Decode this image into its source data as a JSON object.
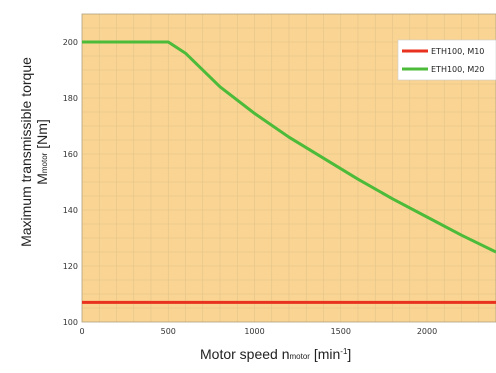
{
  "chart_data": {
    "type": "line",
    "title": "",
    "xlabel": {
      "main": "Motor speed  n",
      "sub": "motor",
      "unit_pre": " [min",
      "unit_sup": "-1",
      "unit_post": "]"
    },
    "ylabel": {
      "line1": "Maximum transmissible torque",
      "line2_main": "M",
      "line2_sub": "motor",
      "line2_unit": " [Nm]"
    },
    "xlim": [
      0,
      2400
    ],
    "ylim": [
      100,
      210
    ],
    "xticks": [
      0,
      500,
      1000,
      1500,
      2000
    ],
    "xtick_labels": [
      "0",
      "500",
      "1000",
      "1500",
      "2000"
    ],
    "yticks": [
      100,
      120,
      140,
      160,
      180,
      200
    ],
    "ytick_labels": [
      "100",
      "120",
      "140",
      "160",
      "180",
      "200"
    ],
    "grid": true,
    "legend_position": "top-right",
    "background_color": "#fad492",
    "series": [
      {
        "name": "ETH100, M10",
        "color": "#e8311e",
        "x": [
          0,
          2400
        ],
        "y": [
          107,
          107
        ]
      },
      {
        "name": "ETH100, M20",
        "color": "#4cbb3a",
        "x": [
          0,
          500,
          600,
          800,
          1000,
          1200,
          1400,
          1600,
          1800,
          2000,
          2200,
          2400
        ],
        "y": [
          200,
          200,
          196,
          184,
          174.5,
          166,
          158.5,
          151,
          144,
          137.5,
          131,
          125
        ]
      }
    ]
  }
}
